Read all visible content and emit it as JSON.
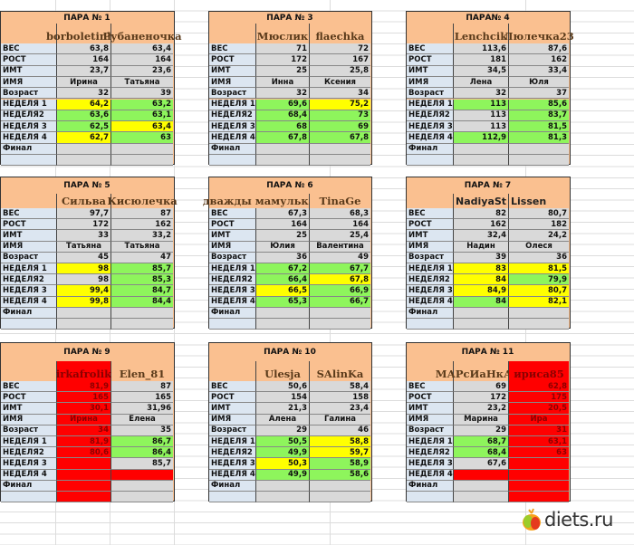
{
  "row_labels": [
    "ВЕС",
    "РОСТ",
    "ИМТ",
    "ИМЯ",
    "Возраст",
    "НЕДЕЛЯ 1",
    "НЕДЕЛЯ2",
    "НЕДЕЛЯ 3",
    "НЕДЕЛЯ 4",
    "Финал",
    ""
  ],
  "colors": {
    "header": "#fac090",
    "label": "#dce6f1",
    "empty": "#d9d9d9",
    "g": "#8ef55c",
    "y": "#ffff00",
    "r": "#ff0000"
  },
  "tables": [
    {
      "title": "ПАРА № 1",
      "names": [
        "borboletinha",
        "Рубаненочка"
      ],
      "name_colors": [
        "",
        ""
      ],
      "a": [
        [
          "63,8",
          ""
        ],
        [
          "164",
          ""
        ],
        [
          "23,7",
          ""
        ],
        [
          "Ирина",
          ""
        ],
        [
          "32",
          ""
        ],
        [
          "64,2",
          "y"
        ],
        [
          "63,6",
          "g"
        ],
        [
          "62,5",
          "g"
        ],
        [
          "62,7",
          "y"
        ],
        [
          "",
          ""
        ],
        [
          "",
          ""
        ]
      ],
      "b": [
        [
          "63,4",
          ""
        ],
        [
          "164",
          ""
        ],
        [
          "23,6",
          ""
        ],
        [
          "Татьяна",
          ""
        ],
        [
          "39",
          ""
        ],
        [
          "63,2",
          "g"
        ],
        [
          "63,1",
          "g"
        ],
        [
          "63,4",
          "y"
        ],
        [
          "63",
          "g"
        ],
        [
          "",
          ""
        ],
        [
          "",
          ""
        ]
      ]
    },
    {
      "title": "ПАРА № 3",
      "names": [
        "Мюслик",
        "flaechka"
      ],
      "name_colors": [
        "",
        ""
      ],
      "a": [
        [
          "71",
          ""
        ],
        [
          "172",
          ""
        ],
        [
          "25",
          ""
        ],
        [
          "Инна",
          ""
        ],
        [
          "32",
          ""
        ],
        [
          "69,6",
          "g"
        ],
        [
          "68,4",
          "g"
        ],
        [
          "68",
          "g"
        ],
        [
          "67,8",
          "g"
        ],
        [
          "",
          ""
        ],
        [
          "",
          ""
        ]
      ],
      "b": [
        [
          "72",
          ""
        ],
        [
          "167",
          ""
        ],
        [
          "25,8",
          ""
        ],
        [
          "Ксения",
          ""
        ],
        [
          "34",
          ""
        ],
        [
          "75,2",
          "y"
        ],
        [
          "73",
          "g"
        ],
        [
          "69",
          "g"
        ],
        [
          "67,8",
          "g"
        ],
        [
          "",
          ""
        ],
        [
          "",
          ""
        ]
      ]
    },
    {
      "title": "ПАРА№ 4",
      "names": [
        "Lenchcik",
        "Люлечка23"
      ],
      "name_colors": [
        "",
        ""
      ],
      "a": [
        [
          "113,6",
          ""
        ],
        [
          "181",
          ""
        ],
        [
          "34,5",
          ""
        ],
        [
          "Лена",
          ""
        ],
        [
          "32",
          ""
        ],
        [
          "113",
          "g"
        ],
        [
          "113",
          ""
        ],
        [
          "113",
          ""
        ],
        [
          "112,9",
          "g"
        ],
        [
          "",
          ""
        ],
        [
          "",
          ""
        ]
      ],
      "b": [
        [
          "87,6",
          ""
        ],
        [
          "162",
          ""
        ],
        [
          "33,4",
          ""
        ],
        [
          "Юля",
          ""
        ],
        [
          "37",
          ""
        ],
        [
          "85,6",
          "g"
        ],
        [
          "83,7",
          "g"
        ],
        [
          "81,5",
          "g"
        ],
        [
          "81,3",
          "g"
        ],
        [
          "",
          ""
        ],
        [
          "",
          ""
        ]
      ]
    },
    {
      "title": "ПАРА № 5",
      "names": [
        "Сильва",
        "Кисюлечка"
      ],
      "name_colors": [
        "",
        ""
      ],
      "a": [
        [
          "97,7",
          ""
        ],
        [
          "172",
          ""
        ],
        [
          "33",
          ""
        ],
        [
          "Татьяна",
          ""
        ],
        [
          "45",
          ""
        ],
        [
          "98",
          "y"
        ],
        [
          "98",
          ""
        ],
        [
          "99,4",
          "y"
        ],
        [
          "99,8",
          "y"
        ],
        [
          "",
          ""
        ],
        [
          "",
          ""
        ]
      ],
      "b": [
        [
          "87",
          ""
        ],
        [
          "162",
          ""
        ],
        [
          "33,2",
          ""
        ],
        [
          "Татьяна",
          ""
        ],
        [
          "47",
          ""
        ],
        [
          "85,7",
          "g"
        ],
        [
          "85,3",
          "g"
        ],
        [
          "84,7",
          "g"
        ],
        [
          "84,4",
          "g"
        ],
        [
          "",
          ""
        ],
        [
          "",
          ""
        ]
      ]
    },
    {
      "title": "ПАРА № 6",
      "names": [
        "дважды мамулька",
        "TinaGe"
      ],
      "name_colors": [
        "",
        ""
      ],
      "a": [
        [
          "67,3",
          ""
        ],
        [
          "164",
          ""
        ],
        [
          "25",
          ""
        ],
        [
          "Юлия",
          ""
        ],
        [
          "36",
          ""
        ],
        [
          "67,2",
          "g"
        ],
        [
          "66,4",
          "g"
        ],
        [
          "66,5",
          "y"
        ],
        [
          "65,3",
          "g"
        ],
        [
          "",
          ""
        ],
        [
          "",
          ""
        ]
      ],
      "b": [
        [
          "68,3",
          ""
        ],
        [
          "164",
          ""
        ],
        [
          "25,4",
          ""
        ],
        [
          "Валентина",
          ""
        ],
        [
          "49",
          ""
        ],
        [
          "67,7",
          "g"
        ],
        [
          "67,8",
          "y"
        ],
        [
          "66,9",
          "g"
        ],
        [
          "66,7",
          "g"
        ],
        [
          "",
          ""
        ],
        [
          "",
          ""
        ]
      ]
    },
    {
      "title": "ПАРА № 7",
      "names": [
        "NadiyaSt",
        "Lissen"
      ],
      "name_colors": [
        "",
        ""
      ],
      "a": [
        [
          "82",
          ""
        ],
        [
          "162",
          ""
        ],
        [
          "32,4",
          ""
        ],
        [
          "Надин",
          ""
        ],
        [
          "39",
          ""
        ],
        [
          "83",
          "y"
        ],
        [
          "84",
          "y"
        ],
        [
          "84,9",
          "y"
        ],
        [
          "84",
          "g"
        ],
        [
          "",
          ""
        ],
        [
          "",
          ""
        ]
      ],
      "b": [
        [
          "80,7",
          ""
        ],
        [
          "182",
          ""
        ],
        [
          "24,2",
          ""
        ],
        [
          "Олеся",
          ""
        ],
        [
          "36",
          ""
        ],
        [
          "81,5",
          "y"
        ],
        [
          "79,9",
          "g"
        ],
        [
          "80,7",
          "y"
        ],
        [
          "82,1",
          "y"
        ],
        [
          "",
          ""
        ],
        [
          "",
          ""
        ]
      ]
    },
    {
      "title": "ПАРА № 9",
      "names": [
        "irkafrolik",
        "Elen_81"
      ],
      "name_colors": [
        "r",
        ""
      ],
      "a": [
        [
          "81,9",
          "r"
        ],
        [
          "165",
          "r"
        ],
        [
          "30,1",
          "r"
        ],
        [
          "Ирина",
          "r"
        ],
        [
          "34",
          "r"
        ],
        [
          "81,9",
          "r"
        ],
        [
          "80,6",
          "r"
        ],
        [
          "",
          "r"
        ],
        [
          "",
          "r"
        ],
        [
          "",
          "r"
        ],
        [
          "",
          "r"
        ]
      ],
      "b": [
        [
          "87",
          ""
        ],
        [
          "165",
          ""
        ],
        [
          "31,96",
          ""
        ],
        [
          "Елена",
          ""
        ],
        [
          "35",
          ""
        ],
        [
          "86,7",
          "g"
        ],
        [
          "86,4",
          "g"
        ],
        [
          "85,7",
          ""
        ],
        [
          "",
          "r"
        ],
        [
          "",
          ""
        ],
        [
          "",
          ""
        ]
      ]
    },
    {
      "title": "ПАРА № 10",
      "names": [
        "Ulesja",
        "SAlinKa"
      ],
      "name_colors": [
        "",
        ""
      ],
      "a": [
        [
          "50,6",
          ""
        ],
        [
          "154",
          ""
        ],
        [
          "21,3",
          ""
        ],
        [
          "Алена",
          ""
        ],
        [
          "29",
          ""
        ],
        [
          "50,5",
          "g"
        ],
        [
          "49,9",
          "g"
        ],
        [
          "50,3",
          "y"
        ],
        [
          "49,9",
          "g"
        ],
        [
          "",
          ""
        ],
        [
          "",
          ""
        ]
      ],
      "b": [
        [
          "58,4",
          ""
        ],
        [
          "158",
          ""
        ],
        [
          "23,4",
          ""
        ],
        [
          "Галина",
          ""
        ],
        [
          "46",
          ""
        ],
        [
          "58,8",
          "y"
        ],
        [
          "59,7",
          "y"
        ],
        [
          "58,9",
          "g"
        ],
        [
          "58,6",
          "g"
        ],
        [
          "",
          ""
        ],
        [
          "",
          ""
        ]
      ]
    },
    {
      "title": "ПАРА № 11",
      "names": [
        "МАРсИаНкА_Я",
        "ириса85"
      ],
      "name_colors": [
        "",
        "r"
      ],
      "a": [
        [
          "69",
          ""
        ],
        [
          "172",
          ""
        ],
        [
          "23,2",
          ""
        ],
        [
          "Марина",
          ""
        ],
        [
          "29",
          ""
        ],
        [
          "68,7",
          "g"
        ],
        [
          "68,4",
          "g"
        ],
        [
          "67,6",
          ""
        ],
        [
          "",
          "r"
        ],
        [
          "",
          ""
        ],
        [
          "",
          ""
        ]
      ],
      "b": [
        [
          "62,8",
          "r"
        ],
        [
          "175",
          "r"
        ],
        [
          "20,5",
          "r"
        ],
        [
          "Ира",
          "r"
        ],
        [
          "31",
          "r"
        ],
        [
          "63,1",
          "r"
        ],
        [
          "63",
          "r"
        ],
        [
          "",
          "r"
        ],
        [
          "",
          "r"
        ],
        [
          "",
          "r"
        ],
        [
          "",
          "r"
        ]
      ]
    }
  ],
  "logo": {
    "text": "diets.ru",
    "icon": "apple-icon"
  }
}
